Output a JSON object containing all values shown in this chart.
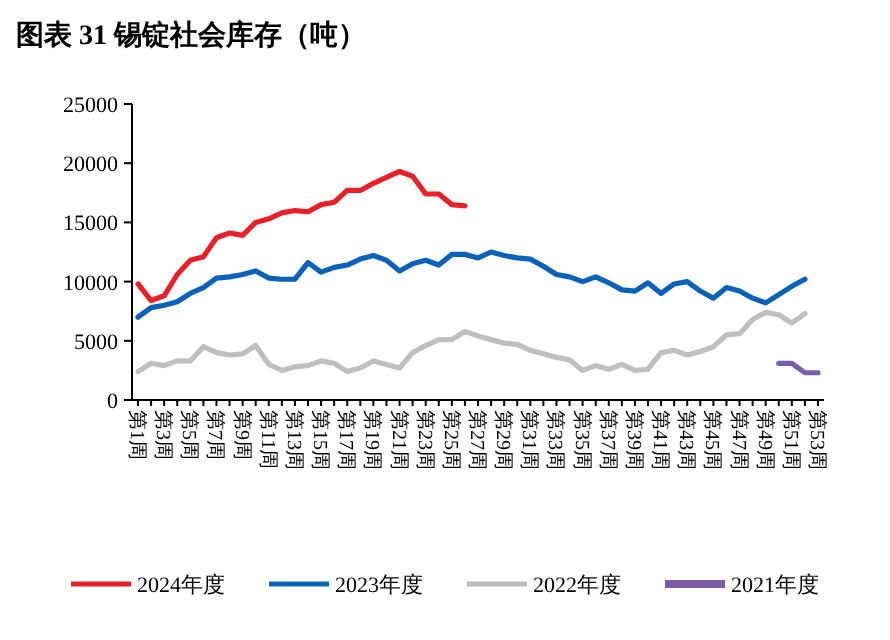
{
  "chart_data": {
    "type": "line",
    "title": "图表 31 锡锭社会库存（吨）",
    "categories": [
      "第1周",
      null,
      "第3周",
      null,
      "第5周",
      null,
      "第7周",
      null,
      "第9周",
      null,
      "第11周",
      null,
      "第13周",
      null,
      "第15周",
      null,
      "第17周",
      null,
      "第19周",
      null,
      "第21周",
      null,
      "第23周",
      null,
      "第25周",
      null,
      "第27周",
      null,
      "第29周",
      null,
      "第31周",
      null,
      "第33周",
      null,
      "第35周",
      null,
      "第37周",
      null,
      "第39周",
      null,
      "第41周",
      null,
      "第43周",
      null,
      "第45周",
      null,
      "第47周",
      null,
      "第49周",
      null,
      "第51周",
      null,
      "第53周"
    ],
    "series": [
      {
        "name": "2024年度",
        "color": "#e8202a",
        "values": [
          9800,
          8400,
          8800,
          10600,
          11800,
          12100,
          13700,
          14100,
          13900,
          15000,
          15300,
          15800,
          16000,
          15900,
          16500,
          16700,
          17700,
          17700,
          18300,
          18800,
          19300,
          18900,
          17400,
          17400,
          16500,
          16400,
          null,
          null,
          null,
          null,
          null,
          null,
          null,
          null,
          null,
          null,
          null,
          null,
          null,
          null,
          null,
          null,
          null,
          null,
          null,
          null,
          null,
          null,
          null,
          null,
          null,
          null,
          null
        ]
      },
      {
        "name": "2023年度",
        "color": "#0a62b8",
        "values": [
          7000,
          7800,
          8000,
          8300,
          9000,
          9500,
          10300,
          10400,
          10600,
          10900,
          10300,
          10200,
          10200,
          11600,
          10800,
          11200,
          11400,
          11900,
          12200,
          11800,
          10900,
          11500,
          11800,
          11400,
          12300,
          12300,
          12000,
          12500,
          12200,
          12000,
          11900,
          11300,
          10600,
          10400,
          10000,
          10400,
          9900,
          9300,
          9200,
          9900,
          9000,
          9800,
          10000,
          9200,
          8600,
          9500,
          9200,
          8600,
          8200,
          8900,
          9600,
          10200,
          null
        ]
      },
      {
        "name": "2022年度",
        "color": "#bfbfbf",
        "values": [
          2400,
          3100,
          2900,
          3300,
          3300,
          4500,
          4000,
          3800,
          3900,
          4600,
          3000,
          2500,
          2800,
          2900,
          3300,
          3100,
          2400,
          2700,
          3300,
          3000,
          2700,
          4000,
          4600,
          5100,
          5100,
          5800,
          5400,
          5100,
          4800,
          4700,
          4200,
          3900,
          3600,
          3400,
          2500,
          2900,
          2600,
          3000,
          2500,
          2600,
          4000,
          4200,
          3800,
          4100,
          4500,
          5500,
          5600,
          6800,
          7400,
          7200,
          6500,
          7300,
          null
        ]
      },
      {
        "name": "2021年度",
        "color": "#7b5ea8",
        "values": [
          null,
          null,
          null,
          null,
          null,
          null,
          null,
          null,
          null,
          null,
          null,
          null,
          null,
          null,
          null,
          null,
          null,
          null,
          null,
          null,
          null,
          null,
          null,
          null,
          null,
          null,
          null,
          null,
          null,
          null,
          null,
          null,
          null,
          null,
          null,
          null,
          null,
          null,
          null,
          null,
          null,
          null,
          null,
          null,
          null,
          null,
          null,
          null,
          null,
          3100,
          3100,
          2300,
          2300
        ]
      }
    ],
    "ylim": [
      0,
      25000
    ],
    "yticks": [
      0,
      5000,
      10000,
      15000,
      20000,
      25000
    ],
    "legend": "bottom"
  }
}
